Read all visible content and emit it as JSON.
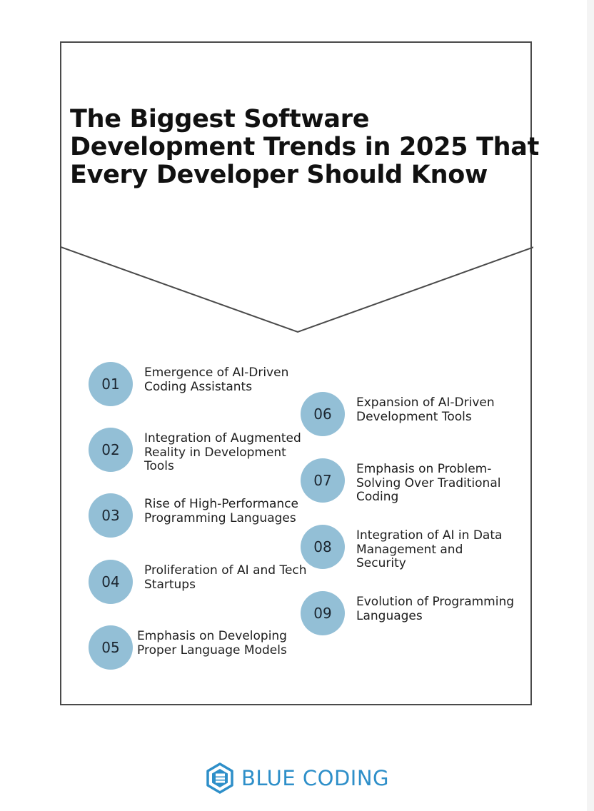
{
  "title_lines": [
    "The Biggest Software",
    "Development Trends in 2025 That",
    "Every Developer Should Know"
  ],
  "trends": [
    {
      "number": "01",
      "text": "Emergence of AI-Driven Coding Assistants"
    },
    {
      "number": "02",
      "text": "Integration of Augmented Reality in Development Tools"
    },
    {
      "number": "03",
      "text": "Rise of High-Performance Programming Languages"
    },
    {
      "number": "04",
      "text": "Proliferation of AI and Tech Startups"
    },
    {
      "number": "05",
      "text": "Emphasis on Developing Proper Language Models"
    },
    {
      "number": "06",
      "text": "Expansion of AI-Driven Development Tools"
    },
    {
      "number": "07",
      "text": "Emphasis on Problem-Solving Over Traditional Coding"
    },
    {
      "number": "08",
      "text": "Integration of AI in Data Management and Security"
    },
    {
      "number": "09",
      "text": "Evolution of Programming Languages"
    }
  ],
  "brand": {
    "name": "BLUE CODING",
    "logo_icon": "hexagon-b-icon",
    "color": "#2e8fc9"
  },
  "colors": {
    "circle": "#93bfd6",
    "frame": "#4a4a4a"
  }
}
